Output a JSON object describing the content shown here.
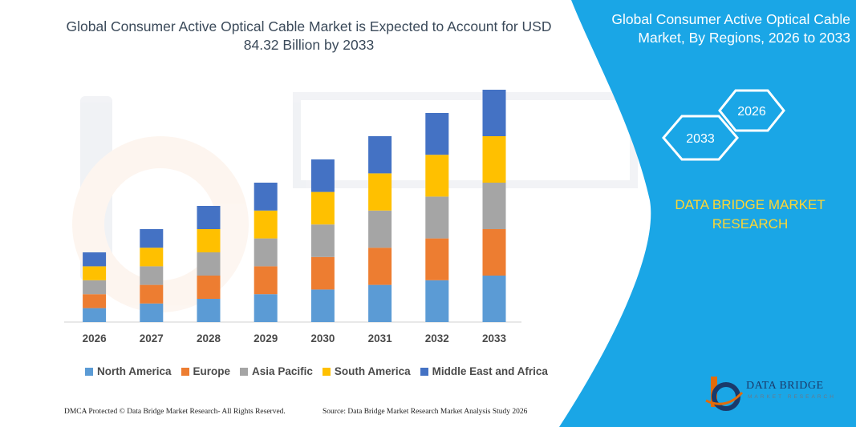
{
  "title": "Global Consumer Active Optical Cable Market is Expected to Account for USD 84.32 Billion by 2033",
  "right_panel": {
    "title": "Global Consumer Active Optical Cable Market, By Regions, 2026 to 2033",
    "hex_year_end": "2033",
    "hex_year_start": "2026",
    "brand_line1": "DATA BRIDGE MARKET",
    "brand_line2": "RESEARCH",
    "background_color": "#1aa6e6"
  },
  "logo": {
    "name": "DATA BRIDGE",
    "tagline": "MARKET RESEARCH"
  },
  "footer": {
    "left": "DMCA Protected © Data Bridge Market Research-  All Rights Reserved.",
    "right": "Source: Data Bridge Market Research  Market Analysis Study 2026"
  },
  "chart_data": {
    "type": "bar",
    "stacked": true,
    "categories": [
      "2026",
      "2027",
      "2028",
      "2029",
      "2030",
      "2031",
      "2032",
      "2033"
    ],
    "ylim": [
      0,
      100
    ],
    "grid": false,
    "legend_position": "bottom",
    "series": [
      {
        "name": "North America",
        "color": "#5b9bd5",
        "values": [
          6,
          8,
          10,
          12,
          14,
          16,
          18,
          20
        ]
      },
      {
        "name": "Europe",
        "color": "#ed7d31",
        "values": [
          6,
          8,
          10,
          12,
          14,
          16,
          18,
          20
        ]
      },
      {
        "name": "Asia Pacific",
        "color": "#a5a5a5",
        "values": [
          6,
          8,
          10,
          12,
          14,
          16,
          18,
          20
        ]
      },
      {
        "name": "South America",
        "color": "#ffc000",
        "values": [
          6,
          8,
          10,
          12,
          14,
          16,
          18,
          20
        ]
      },
      {
        "name": "Middle East and Africa",
        "color": "#4472c4",
        "values": [
          6,
          8,
          10,
          12,
          14,
          16,
          18,
          20
        ]
      }
    ]
  }
}
